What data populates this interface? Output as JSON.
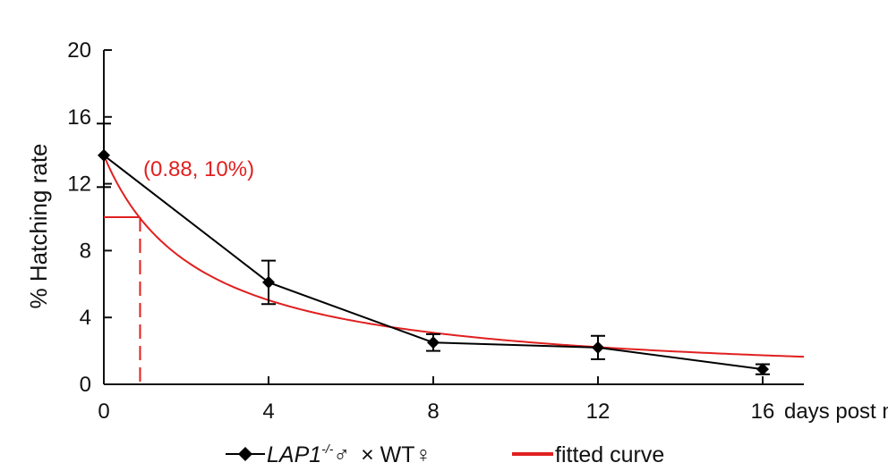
{
  "chart_data": {
    "type": "line",
    "title": "",
    "xlabel": "days post matin",
    "ylabel": "% Hatching rate",
    "xlim": [
      0,
      17
    ],
    "ylim": [
      0,
      20
    ],
    "xticks": [
      0,
      4,
      8,
      12,
      16
    ],
    "xtick_labels": [
      "0",
      "4",
      "8",
      "12",
      "16"
    ],
    "yticks": [
      0,
      4,
      8,
      12,
      16,
      20
    ],
    "ytick_labels": [
      "0",
      "4",
      "8",
      "12",
      "16",
      "20"
    ],
    "grid": false,
    "legend_position": "bottom",
    "series": [
      {
        "name": "LAP1-/-♂ × WT♀",
        "name_parts": {
          "gene": "LAP1",
          "superscript": "-/-",
          "male": "♂",
          "cross": "× WT♀"
        },
        "color": "#000000",
        "marker": "diamond",
        "x": [
          0,
          4,
          8,
          12,
          16
        ],
        "y": [
          13.7,
          6.1,
          2.5,
          2.2,
          0.9
        ],
        "error": [
          1.9,
          1.3,
          0.5,
          0.7,
          0.3
        ]
      },
      {
        "name": "fitted curve",
        "color": "#e02020",
        "model": "y = a / (1 + b*x)",
        "params": {
          "a": 13.7,
          "b": 0.43
        },
        "x_range": [
          0,
          17
        ]
      }
    ],
    "annotations": [
      {
        "text": "(0.88, 10%)",
        "x": 0.88,
        "y": 10,
        "color": "#e02020"
      }
    ]
  }
}
